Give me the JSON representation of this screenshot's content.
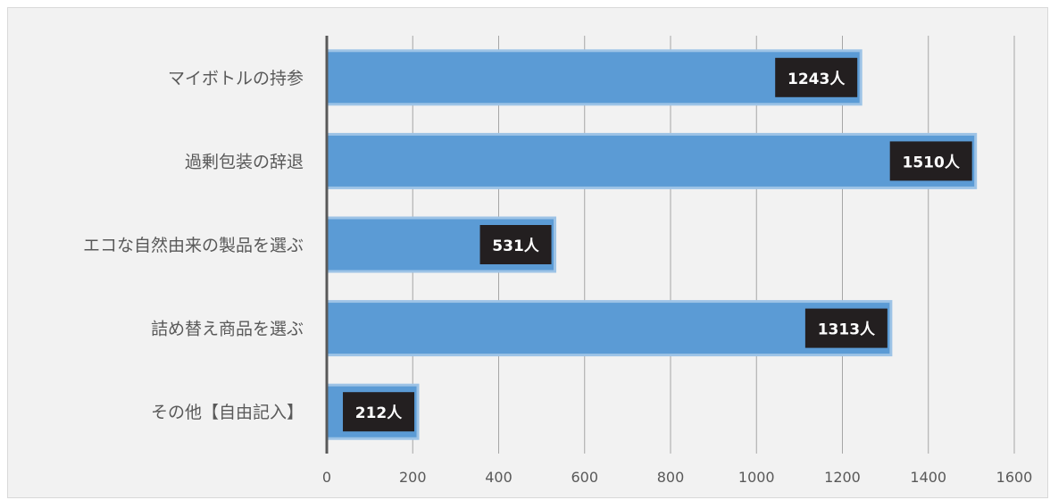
{
  "chart_data": {
    "type": "bar",
    "orientation": "horizontal",
    "categories": [
      "マイボトルの持参",
      "過剰包装の辞退",
      "エコな自然由来の製品を選ぶ",
      "詰め替え商品を選ぶ",
      "その他【自由記入】"
    ],
    "values": [
      1243,
      1510,
      531,
      1313,
      212
    ],
    "data_labels": [
      "1243人",
      "1510人",
      "531人",
      "1313人",
      "212人"
    ],
    "xlim": [
      0,
      1600
    ],
    "x_ticks": [
      "0",
      "200",
      "400",
      "600",
      "800",
      "1000",
      "1200",
      "1400",
      "1600"
    ],
    "grid": true,
    "legend": "none",
    "title": "",
    "xlabel": "",
    "ylabel": "",
    "colors": {
      "bar_fill": "#5b9bd5",
      "bar_border": "#9dc3e6",
      "label_box": "#231f20",
      "label_text": "#ffffff",
      "grid": "#a6a6a6",
      "axis": "#595959",
      "background": "#f2f2f2"
    }
  }
}
